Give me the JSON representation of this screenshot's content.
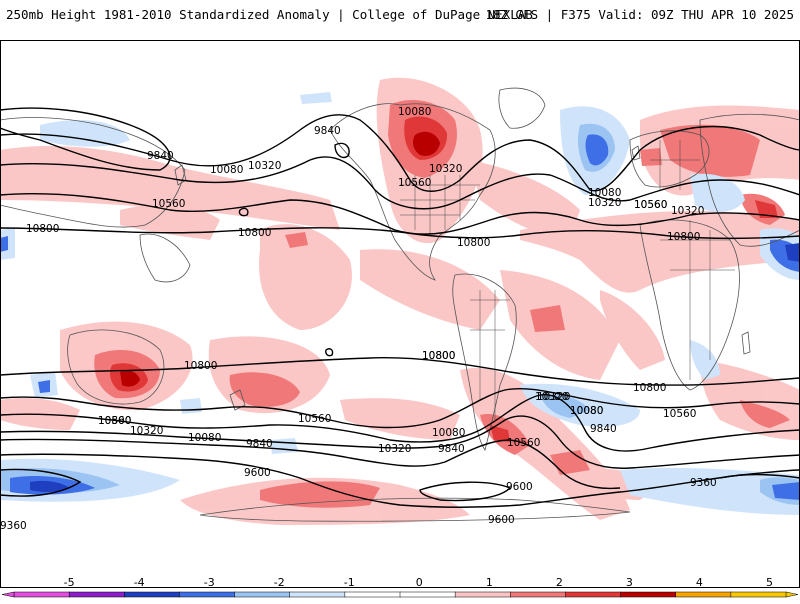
{
  "header": {
    "title": "250mb Height 1981-2010 Standardized Anomaly | College of DuPage NEXLAB",
    "run_info": "18Z GFS | F375 Valid: 09Z THU APR 10 2025"
  },
  "contour_labels": [
    "9840",
    "10080",
    "10320",
    "10560",
    "10800",
    "10080",
    "10320",
    "10560",
    "10560",
    "10320",
    "10800",
    "9840",
    "10080",
    "10320",
    "10560",
    "10320",
    "10800",
    "10800",
    "10800",
    "10800",
    "10800",
    "10560",
    "10320",
    "10080",
    "9840",
    "9600",
    "10800",
    "10560",
    "10320",
    "10080",
    "9840",
    "10080",
    "9600",
    "9360",
    "9360",
    "9600",
    "10560",
    "10320",
    "10080",
    "9840",
    "10800",
    "10560"
  ],
  "colorbar": {
    "colors": [
      "#e24ee0",
      "#8a1fc9",
      "#1f3fc1",
      "#3f6fe6",
      "#9bc4f2",
      "#cfe4fb",
      "#ffffff",
      "#ffffff",
      "#fbc4c4",
      "#f07878",
      "#e03838",
      "#b80000",
      "#f7a300",
      "#f7c800"
    ],
    "tick_labels": [
      "-5",
      "-4",
      "-3",
      "-2",
      "-1",
      "0",
      "1",
      "2",
      "3",
      "4",
      "5"
    ]
  },
  "colors": {
    "positive_light": "#fbc4c4",
    "positive_mid": "#f07878",
    "positive_strong": "#e03838",
    "positive_max": "#b80000",
    "negative_light": "#cfe4fb",
    "negative_mid": "#9bc4f2",
    "negative_strong": "#3f6fe6",
    "negative_max": "#1f3fc1"
  }
}
